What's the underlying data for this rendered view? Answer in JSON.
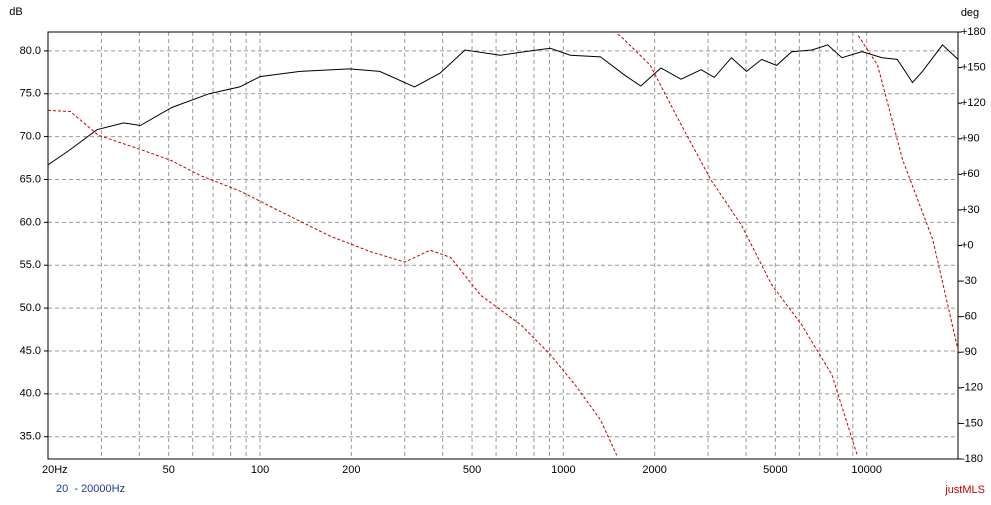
{
  "chart_data": {
    "type": "line",
    "y_label": "dB",
    "y2_label": "deg",
    "range_label": "20  - 20000Hz",
    "watermark": "justMLS",
    "x_log": true,
    "grid": true,
    "xlim": [
      20,
      20000
    ],
    "xticks": [
      {
        "value": 20,
        "label": "20Hz"
      },
      50,
      100,
      200,
      500,
      1000,
      2000,
      5000,
      10000
    ],
    "x_minor_grid": [
      30,
      40,
      60,
      70,
      80,
      90,
      300,
      400,
      600,
      700,
      800,
      900,
      3000,
      4000,
      6000,
      7000,
      8000,
      9000
    ],
    "ylim": [
      32.4,
      82.2
    ],
    "yticks": [
      {
        "value": 35,
        "label": "35.0"
      },
      {
        "value": 40,
        "label": "40.0"
      },
      {
        "value": 45,
        "label": "45.0"
      },
      {
        "value": 50,
        "label": "50.0"
      },
      {
        "value": 55,
        "label": "55.0"
      },
      {
        "value": 60,
        "label": "60.0"
      },
      {
        "value": 65,
        "label": "65.0"
      },
      {
        "value": 70,
        "label": "70.0"
      },
      {
        "value": 75,
        "label": "75.0"
      },
      {
        "value": 80,
        "label": "80.0"
      }
    ],
    "y2lim": [
      -180,
      180
    ],
    "y2ticks": [
      {
        "value": 180,
        "label": "+180"
      },
      {
        "value": 150,
        "label": "+150"
      },
      {
        "value": 120,
        "label": "+120"
      },
      {
        "value": 90,
        "label": "+90"
      },
      {
        "value": 60,
        "label": "+60"
      },
      {
        "value": 30,
        "label": "+30"
      },
      {
        "value": 0,
        "label": "+0"
      },
      -30,
      -60,
      -90,
      -120,
      -150,
      -180
    ],
    "series": [
      {
        "color": "#000000",
        "dashed": false,
        "x": [
          20,
          23.7,
          29,
          35.5,
          40.3,
          51.2,
          68,
          85.7,
          100,
          135.6,
          197.4,
          248,
          323,
          392,
          474,
          619,
          779,
          906,
          1054,
          1326,
          1602,
          1800,
          2097,
          2443,
          2846,
          3145,
          3582,
          4015,
          4502,
          5047,
          5658,
          6592,
          7445,
          8284,
          9651,
          11244,
          12616,
          14155,
          15268,
          17786,
          20000
        ],
        "values": [
          66.7,
          68.5,
          70.8,
          71.6,
          71.3,
          73.4,
          75.0,
          75.8,
          77.0,
          77.6,
          77.9,
          77.6,
          75.8,
          77.4,
          80.1,
          79.5,
          80.0,
          80.3,
          79.5,
          79.3,
          77.1,
          75.9,
          78.0,
          76.7,
          77.8,
          76.9,
          79.2,
          77.6,
          79.0,
          78.3,
          79.9,
          80.1,
          80.7,
          79.2,
          79.9,
          79.2,
          79.0,
          76.3,
          77.6,
          80.7,
          79.0
        ]
      },
      {
        "color": "#cc0000",
        "dashed": true,
        "axis": "y2",
        "x": [
          20,
          23.7,
          29.3,
          40.3,
          50.6,
          63.5,
          85.7,
          116,
          170,
          230,
          300,
          364,
          425,
          534,
          725,
          906,
          1097,
          1326,
          1500,
          1505,
          1510,
          1540,
          1934,
          2443,
          3072,
          3865,
          4858,
          6109,
          7682,
          9310,
          9345,
          9380,
          10860,
          13148,
          16524,
          20000
        ],
        "values": [
          114,
          113,
          93,
          81,
          72,
          59,
          46,
          29,
          8,
          -5,
          -14,
          -4,
          -10,
          -42,
          -67,
          -92,
          -118,
          -147,
          -177,
          null,
          178,
          177,
          152,
          102,
          55,
          17,
          -33,
          -67,
          -109,
          -177,
          null,
          177,
          152,
          72,
          5,
          -88
        ]
      }
    ]
  }
}
